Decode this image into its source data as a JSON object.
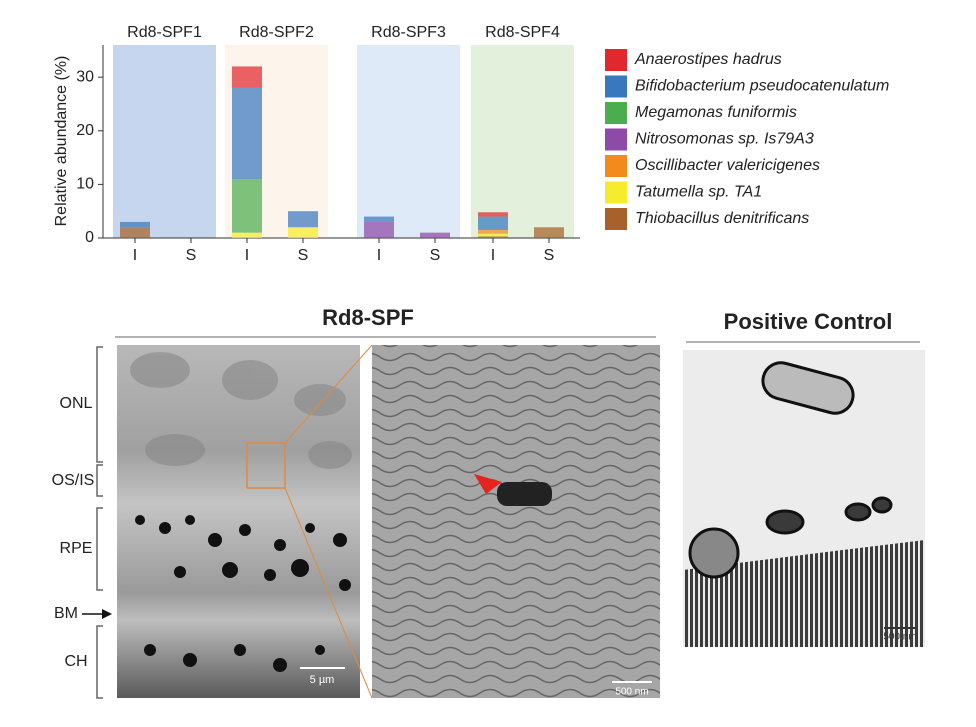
{
  "chart_data": {
    "type": "bar",
    "stacked": true,
    "groups": [
      "Rd8-SPF1",
      "Rd8-SPF2",
      "Rd8-SPF3",
      "Rd8-SPF4"
    ],
    "group_colors": [
      "#c6d6ee",
      "#fdf5ec",
      "#dfeaf8",
      "#e3f0dc"
    ],
    "categories": [
      "I",
      "S",
      "I",
      "S",
      "I",
      "S",
      "I",
      "S"
    ],
    "y_label": "Relative abundance (%)",
    "ylim": [
      0,
      36
    ],
    "yticks": [
      0,
      10,
      20,
      30
    ],
    "series": [
      {
        "name": "Anaerostipes hadrus",
        "color": "#e0282e",
        "values": [
          0,
          0,
          4,
          0,
          0,
          0,
          0.8,
          0
        ]
      },
      {
        "name": "Bifidobacterium pseudocatenulatum",
        "color": "#3a78be",
        "values": [
          1,
          0,
          17,
          3,
          1,
          0,
          2.5,
          0
        ]
      },
      {
        "name": "Megamonas funiformis",
        "color": "#4cad4f",
        "values": [
          0,
          0,
          10,
          0,
          0,
          0,
          0,
          0
        ]
      },
      {
        "name": "Nitrosomonas sp. Is79A3",
        "color": "#8e4aa8",
        "values": [
          0,
          0,
          0,
          0,
          3,
          1,
          0,
          0
        ]
      },
      {
        "name": "Oscillibacter valericigenes",
        "color": "#f28a1c",
        "values": [
          0,
          0,
          0,
          0,
          0,
          0,
          0.7,
          0
        ]
      },
      {
        "name": "Tatumella sp. TA1",
        "color": "#f4ec2c",
        "values": [
          0,
          0,
          1,
          2,
          0,
          0,
          0.5,
          0
        ]
      },
      {
        "name": "Thiobacillus denitrificans",
        "color": "#a8612a",
        "values": [
          2,
          0,
          0,
          0,
          0,
          0,
          0.3,
          2
        ]
      }
    ]
  },
  "micrographs": {
    "title": "Rd8-SPF",
    "control_title": "Positive Control",
    "layer_labels": [
      "ONL",
      "OS/IS",
      "RPE",
      "BM",
      "CH"
    ],
    "scale_bars": [
      "5 µm",
      "500 nm",
      "500 nm"
    ]
  }
}
